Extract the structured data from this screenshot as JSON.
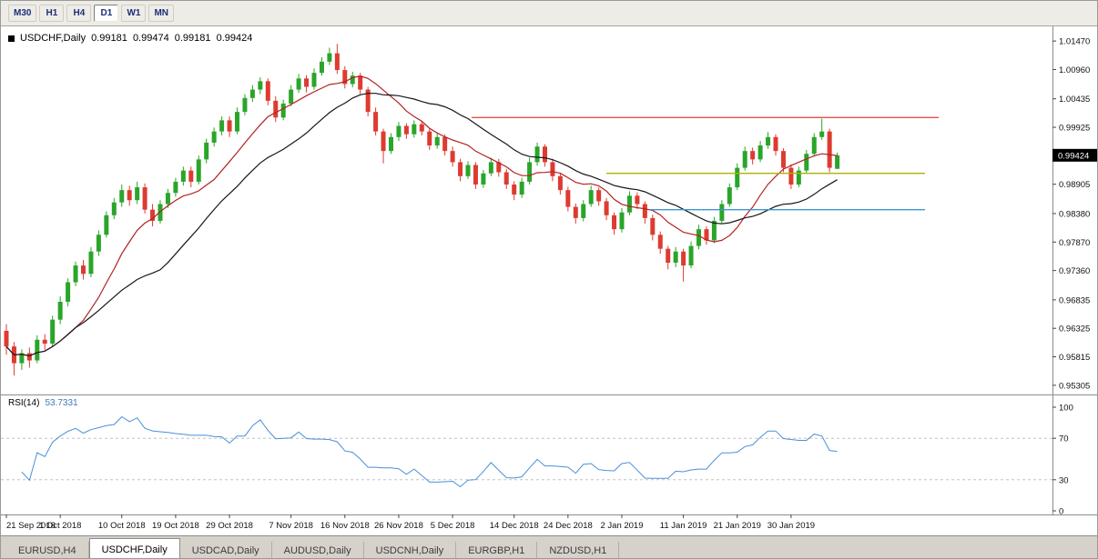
{
  "toolbar": {
    "timeframes": [
      "M30",
      "H1",
      "H4",
      "D1",
      "W1",
      "MN"
    ],
    "active": "D1"
  },
  "chart": {
    "symbol_title": "USDCHF,Daily",
    "ohlc_text": "0.99181 0.99474 0.99181 0.99424",
    "price_tag": "0.99424",
    "colors": {
      "bull": "#2aa52a",
      "bear": "#dd3b31",
      "ma_fast": "#b22222",
      "ma_slow": "#16161d",
      "rsi": "#4a90d9",
      "tag_bg": "#000000",
      "tag_text": "#ffffff",
      "axis_line": "#8c8c8c",
      "dash_level": "#c4c4c4"
    }
  },
  "rsi": {
    "name": "RSI(14)",
    "value": "53.7331"
  },
  "tabs": [
    {
      "label": "EURUSD,H4",
      "active": false
    },
    {
      "label": "USDCHF,Daily",
      "active": true
    },
    {
      "label": "USDCAD,Daily",
      "active": false
    },
    {
      "label": "AUDUSD,Daily",
      "active": false
    },
    {
      "label": "USDCNH,Daily",
      "active": false
    },
    {
      "label": "EURGBP,H1",
      "active": false
    },
    {
      "label": "NZDUSD,H1",
      "active": false
    }
  ],
  "chart_data": {
    "type": "candlestick",
    "symbol": "USDCHF",
    "timeframe": "Daily",
    "title": "USDCHF,Daily",
    "latest_bar": {
      "open": 0.99181,
      "high": 0.99474,
      "low": 0.99181,
      "close": 0.99424
    },
    "y_axis_ticks": [
      "1.01470",
      "1.00960",
      "1.00435",
      "0.99925",
      "0.98905",
      "0.98380",
      "0.97870",
      "0.97360",
      "0.96835",
      "0.96325",
      "0.95815",
      "0.95305"
    ],
    "y_range": [
      0.9514,
      1.017
    ],
    "x_labels": [
      "21 Sep 2018",
      "1 Oct 2018",
      "10 Oct 2018",
      "19 Oct 2018",
      "29 Oct 2018",
      "7 Nov 2018",
      "16 Nov 2018",
      "26 Nov 2018",
      "5 Dec 2018",
      "14 Dec 2018",
      "24 Dec 2018",
      "2 Jan 2019",
      "11 Jan 2019",
      "21 Jan 2019",
      "30 Jan 2019"
    ],
    "x_label_indices": [
      0,
      7,
      15,
      22,
      29,
      37,
      44,
      51,
      58,
      66,
      73,
      80,
      88,
      95,
      102
    ],
    "ohlc_format": [
      "open",
      "high",
      "low",
      "close"
    ],
    "candles": [
      [
        0.9628,
        0.964,
        0.9585,
        0.96
      ],
      [
        0.96,
        0.9608,
        0.9548,
        0.957
      ],
      [
        0.957,
        0.9595,
        0.9558,
        0.9588
      ],
      [
        0.9588,
        0.9598,
        0.9562,
        0.9575
      ],
      [
        0.9575,
        0.962,
        0.957,
        0.9612
      ],
      [
        0.9612,
        0.9622,
        0.9594,
        0.9605
      ],
      [
        0.9605,
        0.9655,
        0.96,
        0.9648
      ],
      [
        0.9648,
        0.969,
        0.964,
        0.968
      ],
      [
        0.968,
        0.9722,
        0.9672,
        0.9715
      ],
      [
        0.9715,
        0.9752,
        0.9708,
        0.9745
      ],
      [
        0.9745,
        0.9755,
        0.972,
        0.973
      ],
      [
        0.973,
        0.9778,
        0.9724,
        0.977
      ],
      [
        0.977,
        0.9808,
        0.9762,
        0.98
      ],
      [
        0.98,
        0.9842,
        0.9795,
        0.9835
      ],
      [
        0.9835,
        0.9866,
        0.9828,
        0.9858
      ],
      [
        0.9858,
        0.989,
        0.985,
        0.988
      ],
      [
        0.988,
        0.9888,
        0.9852,
        0.9862
      ],
      [
        0.9862,
        0.9895,
        0.9855,
        0.9885
      ],
      [
        0.9885,
        0.9892,
        0.9838,
        0.9845
      ],
      [
        0.9845,
        0.9855,
        0.9815,
        0.9825
      ],
      [
        0.9825,
        0.9862,
        0.982,
        0.9855
      ],
      [
        0.9855,
        0.9882,
        0.9848,
        0.9875
      ],
      [
        0.9875,
        0.9902,
        0.9868,
        0.9895
      ],
      [
        0.9895,
        0.9922,
        0.9888,
        0.9915
      ],
      [
        0.9915,
        0.9922,
        0.9885,
        0.9895
      ],
      [
        0.9895,
        0.9942,
        0.989,
        0.9935
      ],
      [
        0.9935,
        0.9972,
        0.9928,
        0.9965
      ],
      [
        0.9965,
        0.9992,
        0.9958,
        0.9985
      ],
      [
        0.9985,
        1.0012,
        0.9978,
        1.0005
      ],
      [
        1.0005,
        1.0012,
        0.9975,
        0.9985
      ],
      [
        0.9985,
        1.0028,
        0.998,
        1.002
      ],
      [
        1.002,
        1.0052,
        1.0014,
        1.0045
      ],
      [
        1.0045,
        1.0068,
        1.0038,
        1.006
      ],
      [
        1.006,
        1.0082,
        1.0052,
        1.0075
      ],
      [
        1.0075,
        1.008,
        1.0032,
        1.004
      ],
      [
        1.004,
        1.0048,
        1.0002,
        1.001
      ],
      [
        1.001,
        1.0042,
        1.0005,
        1.0035
      ],
      [
        1.0035,
        1.0068,
        1.003,
        1.006
      ],
      [
        1.006,
        1.0088,
        1.0054,
        1.008
      ],
      [
        1.008,
        1.0086,
        1.0055,
        1.0065
      ],
      [
        1.0065,
        1.0098,
        1.006,
        1.009
      ],
      [
        1.009,
        1.0118,
        1.0085,
        1.011
      ],
      [
        1.011,
        1.0135,
        1.0104,
        1.0125
      ],
      [
        1.0125,
        1.0142,
        1.0088,
        1.0095
      ],
      [
        1.0095,
        1.0102,
        1.0062,
        1.007
      ],
      [
        1.007,
        1.0092,
        1.0064,
        1.0085
      ],
      [
        1.0085,
        1.009,
        1.0052,
        1.006
      ],
      [
        1.006,
        1.0065,
        1.0012,
        1.002
      ],
      [
        1.002,
        1.0028,
        0.9978,
        0.9985
      ],
      [
        0.9985,
        0.999,
        0.9928,
        0.995
      ],
      [
        0.995,
        0.9982,
        0.9945,
        0.9975
      ],
      [
        0.9975,
        1.0002,
        0.9968,
        0.9995
      ],
      [
        0.9995,
        1.0,
        0.9972,
        0.998
      ],
      [
        0.998,
        1.0005,
        0.9974,
        0.9998
      ],
      [
        0.9998,
        1.0004,
        0.9978,
        0.9985
      ],
      [
        0.9985,
        0.999,
        0.9952,
        0.996
      ],
      [
        0.996,
        0.9982,
        0.9954,
        0.9975
      ],
      [
        0.9975,
        0.998,
        0.9942,
        0.995
      ],
      [
        0.995,
        0.9958,
        0.9922,
        0.993
      ],
      [
        0.993,
        0.9936,
        0.9896,
        0.9905
      ],
      [
        0.9905,
        0.9932,
        0.99,
        0.9925
      ],
      [
        0.9925,
        0.993,
        0.9882,
        0.989
      ],
      [
        0.989,
        0.9916,
        0.9884,
        0.991
      ],
      [
        0.991,
        0.9938,
        0.9905,
        0.993
      ],
      [
        0.993,
        0.9936,
        0.9904,
        0.9912
      ],
      [
        0.9912,
        0.9918,
        0.9882,
        0.989
      ],
      [
        0.989,
        0.9896,
        0.9862,
        0.9872
      ],
      [
        0.9872,
        0.9902,
        0.9866,
        0.9895
      ],
      [
        0.9895,
        0.9938,
        0.989,
        0.993
      ],
      [
        0.993,
        0.9965,
        0.9924,
        0.9958
      ],
      [
        0.9958,
        0.9962,
        0.9922,
        0.993
      ],
      [
        0.993,
        0.9936,
        0.9896,
        0.9905
      ],
      [
        0.9905,
        0.991,
        0.9872,
        0.988
      ],
      [
        0.988,
        0.9886,
        0.9842,
        0.985
      ],
      [
        0.985,
        0.9856,
        0.982,
        0.983
      ],
      [
        0.983,
        0.9862,
        0.9824,
        0.9855
      ],
      [
        0.9855,
        0.9888,
        0.985,
        0.988
      ],
      [
        0.988,
        0.9885,
        0.9852,
        0.986
      ],
      [
        0.986,
        0.9866,
        0.9826,
        0.9835
      ],
      [
        0.9835,
        0.984,
        0.98,
        0.981
      ],
      [
        0.981,
        0.9848,
        0.9804,
        0.984
      ],
      [
        0.984,
        0.9878,
        0.9835,
        0.987
      ],
      [
        0.987,
        0.9876,
        0.9846,
        0.9855
      ],
      [
        0.9855,
        0.986,
        0.982,
        0.983
      ],
      [
        0.983,
        0.9836,
        0.979,
        0.98
      ],
      [
        0.98,
        0.9806,
        0.9766,
        0.9775
      ],
      [
        0.9775,
        0.978,
        0.9738,
        0.975
      ],
      [
        0.975,
        0.9778,
        0.9742,
        0.977
      ],
      [
        0.977,
        0.9775,
        0.9716,
        0.9745
      ],
      [
        0.9745,
        0.9788,
        0.974,
        0.978
      ],
      [
        0.978,
        0.9818,
        0.9774,
        0.981
      ],
      [
        0.981,
        0.9815,
        0.9782,
        0.979
      ],
      [
        0.979,
        0.9832,
        0.9785,
        0.9825
      ],
      [
        0.9825,
        0.9862,
        0.982,
        0.9855
      ],
      [
        0.9855,
        0.9892,
        0.985,
        0.9885
      ],
      [
        0.9885,
        0.9928,
        0.988,
        0.992
      ],
      [
        0.992,
        0.9958,
        0.9915,
        0.995
      ],
      [
        0.995,
        0.9956,
        0.9926,
        0.9935
      ],
      [
        0.9935,
        0.9968,
        0.993,
        0.996
      ],
      [
        0.996,
        0.9984,
        0.9954,
        0.9975
      ],
      [
        0.9975,
        0.998,
        0.9942,
        0.995
      ],
      [
        0.995,
        0.9955,
        0.9912,
        0.992
      ],
      [
        0.992,
        0.9926,
        0.9882,
        0.989
      ],
      [
        0.989,
        0.9922,
        0.9885,
        0.9915
      ],
      [
        0.9915,
        0.9952,
        0.991,
        0.9945
      ],
      [
        0.9945,
        0.9982,
        0.994,
        0.9975
      ],
      [
        0.9975,
        1.0008,
        0.997,
        0.9985
      ],
      [
        0.9985,
        0.999,
        0.9912,
        0.992
      ],
      [
        0.99181,
        0.99474,
        0.99181,
        0.99424
      ]
    ],
    "moving_averages": [
      {
        "period": 10,
        "color": "#b22222"
      },
      {
        "period": 21,
        "color": "#16161d"
      }
    ],
    "hlines": [
      {
        "price": 1.001,
        "color": "#e3504a",
        "x1": 0.448,
        "x2": 0.892
      },
      {
        "price": 0.991,
        "color": "#b0b000",
        "x1": 0.576,
        "x2": 0.879
      },
      {
        "price": 0.9845,
        "color": "#3d96d2",
        "x1": 0.617,
        "x2": 0.879
      }
    ],
    "current_price": "0.99424",
    "indicator": {
      "name": "RSI",
      "period": 14,
      "value": "53.7331",
      "levels": [
        100,
        70,
        30,
        0
      ],
      "dashed_levels": [
        70,
        30
      ],
      "range": [
        0,
        100
      ],
      "color": "#4a90d9"
    }
  }
}
